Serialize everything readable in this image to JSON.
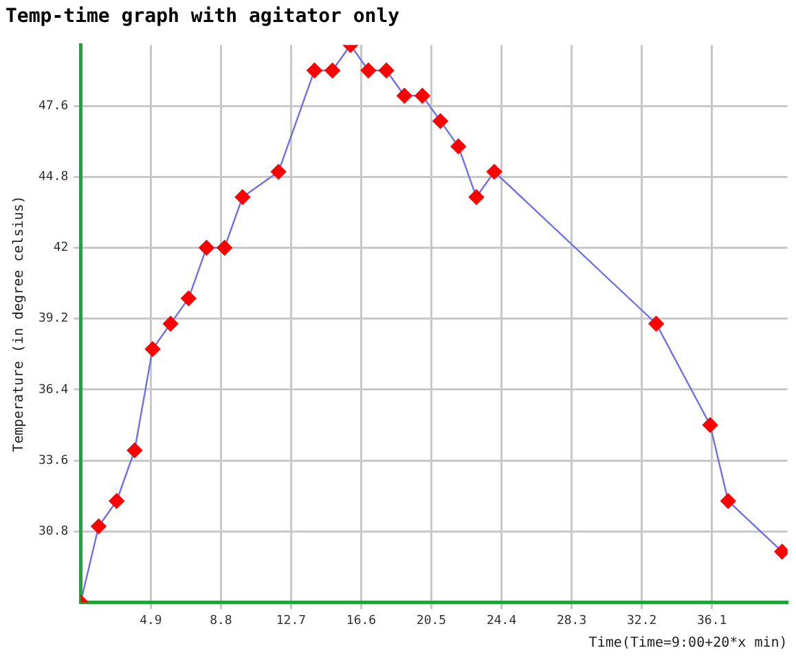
{
  "chart_data": {
    "type": "line",
    "title": "Temp-time graph with agitator only",
    "xlabel": "Time(Time=9:00+20*x min)",
    "ylabel": "Temperature (in degree celsius)",
    "x": [
      1,
      2,
      3,
      4,
      5,
      6,
      7,
      8,
      9,
      10,
      12,
      14,
      15,
      16,
      17,
      18,
      19,
      20,
      21,
      22,
      23,
      24,
      33,
      36,
      37,
      40
    ],
    "series": [
      {
        "color": "#6f6fe8",
        "colors": [
          "#ff0000",
          "#ff0000",
          "#ff0000",
          "#ff0000",
          "#ff0000",
          "#ff0000",
          "#ff0000",
          "#ff0000",
          "#ff0000",
          "#ff0000",
          "#ff0000",
          "#ff0000",
          "#ff0000",
          "#ff0000",
          "#ff0000",
          "#ff0000",
          "#ff0000",
          "#ff0000",
          "#ff0000",
          "#ff0000",
          "#ff0000",
          "#ff0000",
          "#ff0000",
          "#ff0000",
          "#ff0000",
          "#ff0000"
        ],
        "values": [
          28,
          31,
          32,
          34,
          38,
          39,
          40,
          42,
          42,
          44,
          45,
          49,
          49,
          50,
          49,
          49,
          48,
          48,
          47,
          46,
          44,
          45,
          39,
          35,
          32,
          30
        ]
      }
    ],
    "marker": "diamond",
    "line_style": "solid",
    "xlim": [
      1,
      40.3
    ],
    "xticks": [
      4.9,
      8.8,
      12.7,
      16.6,
      20.5,
      24.4,
      28.3,
      32.2,
      36.1
    ],
    "ylim": [
      28,
      50
    ],
    "yticks": [
      30.8,
      33.6,
      36.4,
      39.2,
      42,
      44.8,
      47.6
    ],
    "grid": true,
    "legend": false
  }
}
